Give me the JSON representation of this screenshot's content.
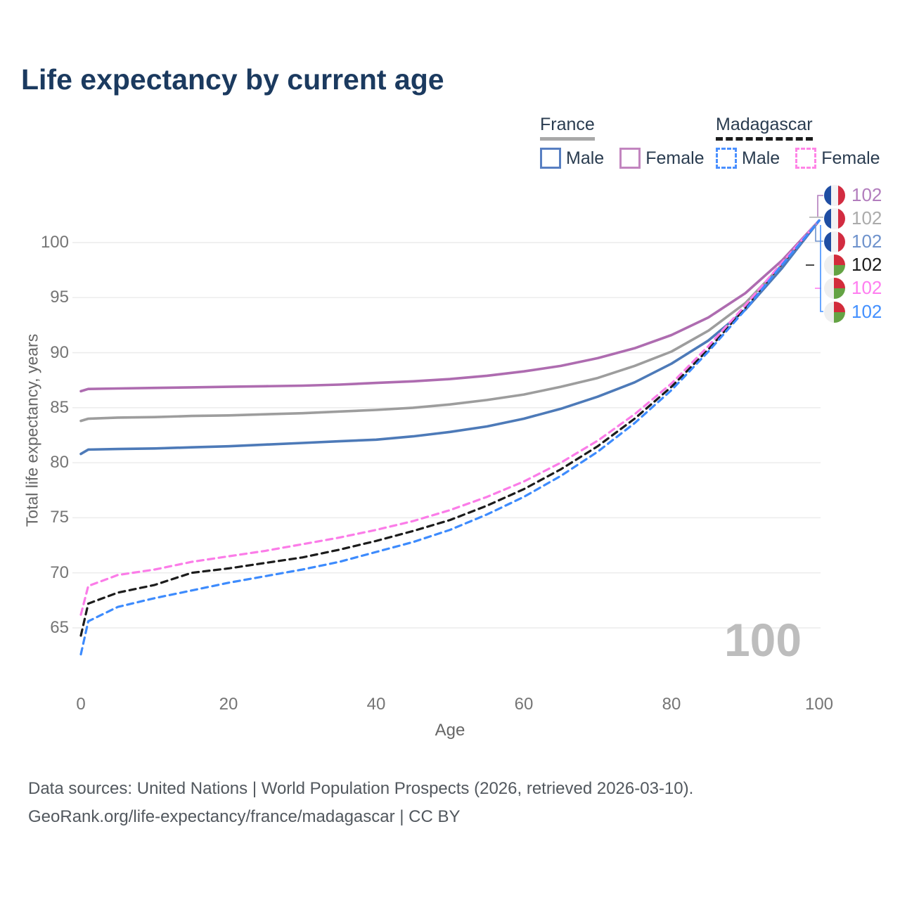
{
  "title": "Life expectancy by current age",
  "legend": {
    "groups": [
      {
        "label": "France",
        "line_style": "solid",
        "items": [
          {
            "label": "Male"
          },
          {
            "label": "Female"
          }
        ]
      },
      {
        "label": "Madagascar",
        "line_style": "dashed",
        "items": [
          {
            "label": "Male"
          },
          {
            "label": "Female"
          }
        ]
      }
    ]
  },
  "watermark": "100",
  "colors": {
    "title_text": "#1b3a5f",
    "legend_text": "#2a3c50",
    "tick_text": "#757575",
    "gridline": "#ececec",
    "watermark_text": "#bdbdbd",
    "footer_text": "#52585e",
    "france_underline": "#a8a8a8",
    "madagascar_underline": "#1c1c1c",
    "checkbox_france_male": "#587fc2",
    "checkbox_france_female": "#c285bf",
    "checkbox_madagascar_male": "#4a90ff",
    "checkbox_madagascar_female": "#ff85e6",
    "flags": {
      "france_blue": "#1f4ea3",
      "france_white": "#f2f2f4",
      "france_red": "#d22c41",
      "madagascar_white": "#efefef",
      "madagascar_red": "#d22c3b",
      "madagascar_green": "#64a344"
    }
  },
  "right_labels": [
    {
      "flag": "france",
      "value": "102",
      "color": "#b27dbd"
    },
    {
      "flag": "france",
      "value": "102",
      "color": "#ababab"
    },
    {
      "flag": "france",
      "value": "102",
      "color": "#6e92cc"
    },
    {
      "flag": "madagascar",
      "value": "102",
      "color": "#1c1c1c"
    },
    {
      "flag": "madagascar",
      "value": "102",
      "color": "#ff7df0"
    },
    {
      "flag": "madagascar",
      "value": "102",
      "color": "#4390ff"
    }
  ],
  "chart_data": {
    "type": "line",
    "title": "Life expectancy by current age",
    "xlabel": "Age",
    "ylabel": "Total life expectancy, years",
    "xlim": [
      0,
      100
    ],
    "ylim": [
      62,
      103
    ],
    "xticks": [
      0,
      20,
      40,
      60,
      80,
      100
    ],
    "yticks": [
      65,
      70,
      75,
      80,
      85,
      90,
      95,
      100
    ],
    "grid": "horizontal-only",
    "legend_position": "top-right",
    "x": [
      0,
      1,
      5,
      10,
      15,
      20,
      25,
      30,
      35,
      40,
      45,
      50,
      55,
      60,
      65,
      70,
      75,
      80,
      85,
      90,
      95,
      100
    ],
    "series": [
      {
        "key": "france_female",
        "name": "France Female",
        "country": "France",
        "sex": "Female",
        "style": "solid",
        "color": "#ae6cb0",
        "end_label": "102",
        "values": [
          86.5,
          86.7,
          86.75,
          86.8,
          86.85,
          86.9,
          86.95,
          87.0,
          87.1,
          87.25,
          87.4,
          87.6,
          87.9,
          88.3,
          88.8,
          89.5,
          90.4,
          91.6,
          93.2,
          95.4,
          98.4,
          102
        ]
      },
      {
        "key": "france_total",
        "name": "France (both sexes)",
        "country": "France",
        "sex": "Both",
        "style": "solid",
        "color": "#9d9d9d",
        "end_label": "102",
        "values": [
          83.8,
          84.0,
          84.1,
          84.15,
          84.25,
          84.3,
          84.4,
          84.5,
          84.65,
          84.8,
          85.0,
          85.3,
          85.7,
          86.2,
          86.9,
          87.7,
          88.8,
          90.1,
          92.0,
          94.5,
          98.0,
          102
        ]
      },
      {
        "key": "france_male",
        "name": "France Male",
        "country": "France",
        "sex": "Male",
        "style": "solid",
        "color": "#4d7ab8",
        "end_label": "102",
        "values": [
          80.8,
          81.2,
          81.25,
          81.3,
          81.4,
          81.5,
          81.65,
          81.8,
          81.95,
          82.1,
          82.4,
          82.8,
          83.3,
          84.0,
          84.9,
          86.0,
          87.3,
          89.0,
          91.1,
          93.9,
          97.7,
          102
        ]
      },
      {
        "key": "madagascar_total",
        "name": "Madagascar (both sexes)",
        "country": "Madagascar",
        "sex": "Both",
        "style": "dashed",
        "color": "#1c1c1c",
        "end_label": "102",
        "values": [
          64.3,
          67.2,
          68.2,
          68.9,
          70.0,
          70.4,
          70.9,
          71.4,
          72.1,
          72.9,
          73.8,
          74.8,
          76.1,
          77.6,
          79.4,
          81.5,
          84.0,
          86.9,
          90.3,
          94.1,
          98.1,
          102
        ]
      },
      {
        "key": "madagascar_female",
        "name": "Madagascar Female",
        "country": "Madagascar",
        "sex": "Female",
        "style": "dashed",
        "color": "#fb7ce8",
        "end_label": "102",
        "values": [
          66.2,
          68.8,
          69.8,
          70.3,
          71.0,
          71.5,
          72.0,
          72.6,
          73.2,
          73.9,
          74.7,
          75.7,
          76.9,
          78.3,
          80.0,
          82.0,
          84.4,
          87.2,
          90.6,
          94.3,
          98.2,
          102
        ]
      },
      {
        "key": "madagascar_male",
        "name": "Madagascar Male",
        "country": "Madagascar",
        "sex": "Male",
        "style": "dashed",
        "color": "#3d8bfd",
        "end_label": "102",
        "values": [
          62.6,
          65.6,
          66.9,
          67.7,
          68.4,
          69.1,
          69.7,
          70.3,
          71.0,
          71.9,
          72.8,
          73.9,
          75.3,
          76.9,
          78.8,
          81.0,
          83.6,
          86.6,
          90.1,
          93.9,
          98.0,
          102
        ]
      }
    ]
  },
  "footer": {
    "line1": "Data sources: United Nations | World Population Prospects (2026, retrieved 2026-03-10).",
    "line2": "GeoRank.org/life-expectancy/france/madagascar | CC BY"
  }
}
